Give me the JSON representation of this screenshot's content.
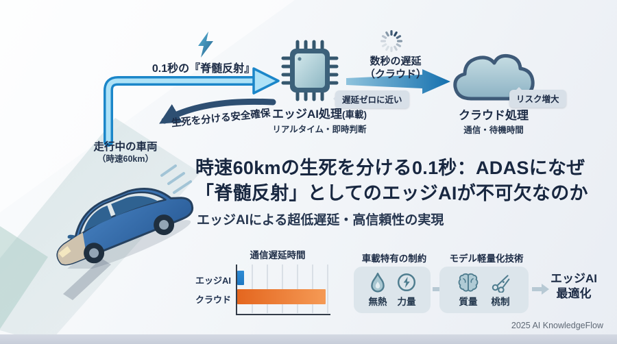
{
  "flow": {
    "reflex_label": "0.1秒の『脊髄反射』",
    "safety_label": "生死を分ける安全確保",
    "edge": {
      "title": "エッジAI処理",
      "title_suffix": "(車載)",
      "subtitle": "リアルタイム・即時判断",
      "badge": "遅延ゼロに近い"
    },
    "delay_line1": "数秒の遅延",
    "delay_line2": "（クラウド）",
    "cloud": {
      "title": "クラウド処理",
      "subtitle": "通信・待機時間",
      "badge": "リスク増大"
    },
    "vehicle": {
      "label": "走行中の車両",
      "sublabel": "（時速60km）"
    }
  },
  "headline": {
    "line1": "時速60kmの生死を分ける0.1秒：ADASになぜ",
    "line2": "「脊髄反射」としてのエッジAIが不可欠なのか",
    "subtitle": "エッジAIによる超低遅延・高信頼性の実現"
  },
  "chart_data": {
    "type": "bar",
    "orientation": "horizontal",
    "title": "通信遅延時間",
    "categories": [
      "エッジAI",
      "クラウド"
    ],
    "values": [
      7,
      95
    ],
    "xmax": 100,
    "colors": [
      "#2e8bd4",
      "#ee7d33"
    ],
    "grid": true,
    "xlabel": "",
    "ylabel": "",
    "legend": false
  },
  "bottom": {
    "constraints": {
      "title": "車載特有の制約",
      "items": [
        {
          "icon": "flame-icon",
          "label": "無熱"
        },
        {
          "icon": "power-icon",
          "label": "力量"
        }
      ]
    },
    "lightweight": {
      "title": "モデル軽量化技術",
      "items": [
        {
          "icon": "brain-icon",
          "label": "質量"
        },
        {
          "icon": "scissors-icon",
          "label": "桃制"
        }
      ]
    },
    "result_line1": "エッジAI",
    "result_line2": "最適化"
  },
  "footer": "2025 AI KnowledgeFlow",
  "colors": {
    "text_primary": "#1c2b45",
    "arrow_light_blue": "#1b86c9",
    "arrow_dark_navy": "#2e4f72",
    "badge_bg": "#d8e0e8",
    "bar_edge": "#2e8bd4",
    "bar_cloud": "#ee7d33",
    "card_bg": "#dce5eb"
  }
}
